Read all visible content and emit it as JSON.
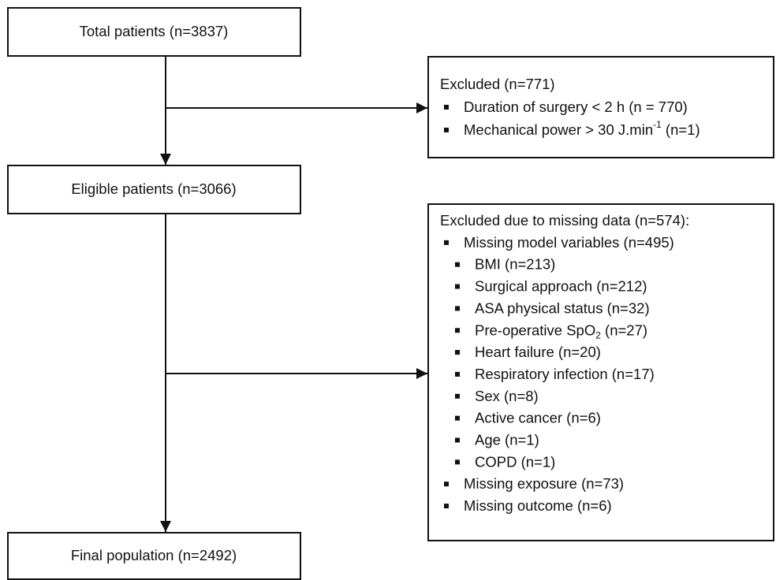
{
  "boxes": [
    {
      "label": "Total patients (n=3837)"
    },
    {
      "label": "Eligible patients (n=3066)"
    },
    {
      "label": "Final population (n=2492)"
    }
  ],
  "exclusions": [
    {
      "title": "Excluded (n=771)",
      "items": [
        {
          "text": "Duration of surgery < 2 h (n = 770)"
        },
        {
          "text": "Mechanical power > 30 J.min",
          "sup": "-1",
          "tail": " (n=1)"
        }
      ]
    },
    {
      "title": "Excluded due to missing data (n=574):",
      "items": [
        {
          "text": "Missing model variables (n=495)",
          "items": [
            {
              "text": "BMI (n=213)"
            },
            {
              "text": "Surgical approach (n=212)"
            },
            {
              "text": "ASA physical status (n=32)"
            },
            {
              "text": "Pre-operative SpO",
              "sub": "2",
              "tail": " (n=27)"
            },
            {
              "text": "Heart failure (n=20)"
            },
            {
              "text": "Respiratory infection (n=17)"
            },
            {
              "text": "Sex (n=8)"
            },
            {
              "text": "Active cancer (n=6)"
            },
            {
              "text": "Age (n=1)"
            },
            {
              "text": "COPD (n=1)"
            }
          ]
        },
        {
          "text": "Missing exposure (n=73)"
        },
        {
          "text": "Missing outcome (n=6)"
        }
      ]
    }
  ]
}
